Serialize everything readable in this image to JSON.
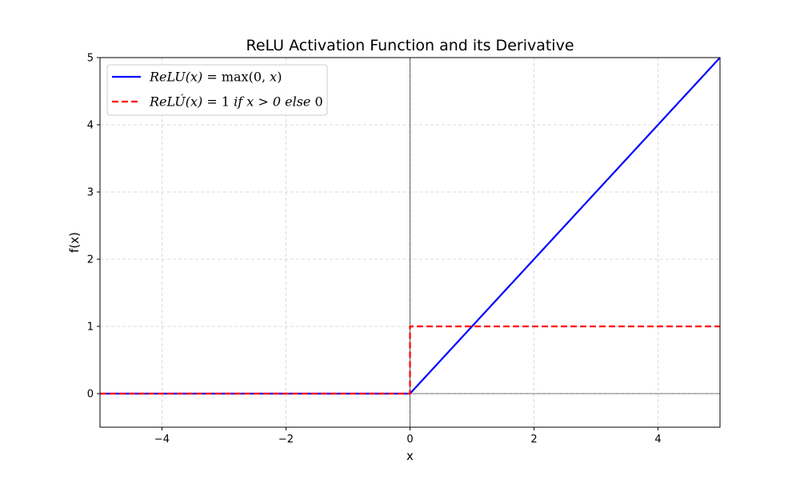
{
  "chart_data": {
    "type": "line",
    "title": "ReLU Activation Function and its Derivative",
    "xlabel": "x",
    "ylabel": "f(x)",
    "xlim": [
      -5,
      5
    ],
    "ylim": [
      -0.5,
      5
    ],
    "xticks": [
      -4,
      -2,
      0,
      2,
      4
    ],
    "xtick_labels": [
      "−4",
      "−2",
      "0",
      "2",
      "4"
    ],
    "yticks": [
      0,
      1,
      2,
      3,
      4,
      5
    ],
    "ytick_labels": [
      "0",
      "1",
      "2",
      "3",
      "4",
      "5"
    ],
    "grid": true,
    "legend_position": "top-left",
    "reference_lines": {
      "x": 0,
      "y": 0,
      "color": "#000000"
    },
    "series": [
      {
        "name": "ReLU(x) = max(0, x)",
        "legend_parts": {
          "func": "ReLU",
          "arg": "(x) = ",
          "rest": "max(0, ",
          "tail": "x",
          "end": ")"
        },
        "color": "#0000ff",
        "style": "solid",
        "x": [
          -5,
          0,
          5
        ],
        "y": [
          0,
          0,
          5
        ]
      },
      {
        "name": "ReLÚ(x) = 1 if x > 0 else 0",
        "legend_parts": {
          "func": "ReLÚ",
          "arg": "(x) = ",
          "rest": "1 ",
          "tail": "if x > 0 else ",
          "end": "0"
        },
        "color": "#ff0000",
        "style": "dashed",
        "x": [
          -5,
          0,
          0,
          5
        ],
        "y": [
          0,
          0,
          1,
          1
        ]
      }
    ]
  }
}
